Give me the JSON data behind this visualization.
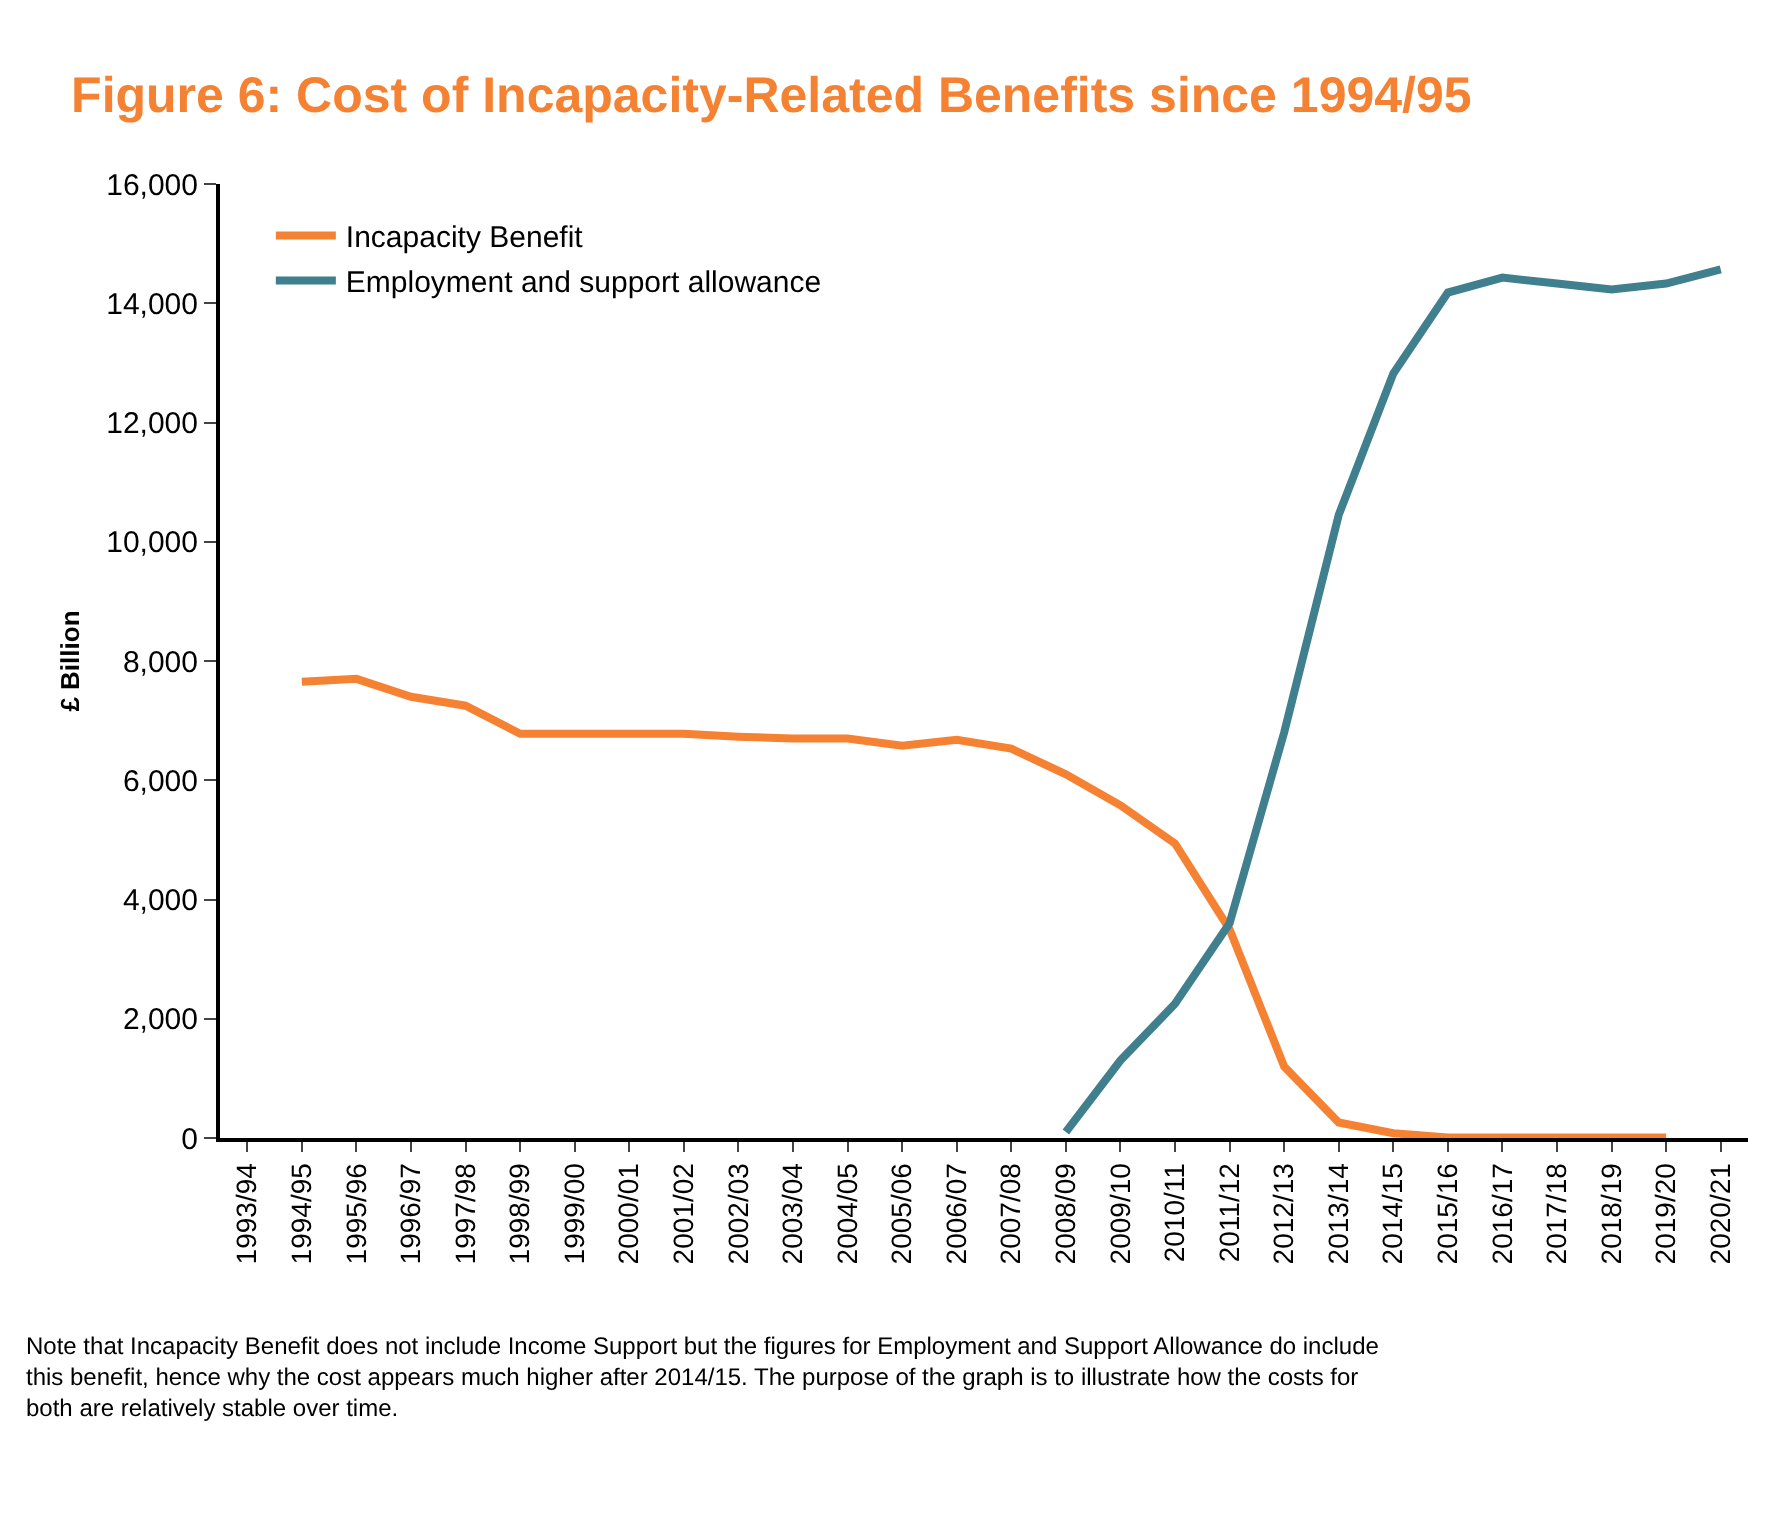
{
  "chart_data": {
    "type": "line",
    "title": "Figure 6: Cost of Incapacity-Related Benefits since 1994/95",
    "ylabel": "£ Billion",
    "categories": [
      "1993/94",
      "1994/95",
      "1995/96",
      "1996/97",
      "1997/98",
      "1998/99",
      "1999/00",
      "2000/01",
      "2001/02",
      "2002/03",
      "2003/04",
      "2004/05",
      "2005/06",
      "2006/07",
      "2007/08",
      "2008/09",
      "2009/10",
      "2010/11",
      "2011/12",
      "2012/13",
      "2013/14",
      "2014/15",
      "2015/16",
      "2016/17",
      "2017/18",
      "2018/19",
      "2019/20",
      "2020/21"
    ],
    "series": [
      {
        "name": "Incapacity Benefit",
        "color": "#f58233",
        "values": [
          null,
          7650,
          7700,
          7400,
          7250,
          6780,
          6780,
          6780,
          6780,
          6730,
          6700,
          6700,
          6580,
          6680,
          6530,
          6100,
          5580,
          4940,
          3500,
          1200,
          260,
          80,
          10,
          10,
          10,
          10,
          10,
          null
        ]
      },
      {
        "name": "Employment and support allowance",
        "color": "#3f7f8e",
        "values": [
          null,
          null,
          null,
          null,
          null,
          null,
          null,
          null,
          null,
          null,
          null,
          null,
          null,
          null,
          null,
          100,
          1300,
          2250,
          3600,
          6800,
          10450,
          12820,
          14180,
          14430,
          14330,
          14230,
          14330,
          14570
        ]
      }
    ],
    "ylim": [
      0,
      16000
    ],
    "yticks": [
      {
        "value": 0,
        "label": "0"
      },
      {
        "value": 2000,
        "label": "2,000"
      },
      {
        "value": 4000,
        "label": "4,000"
      },
      {
        "value": 6000,
        "label": "6,000"
      },
      {
        "value": 8000,
        "label": "8,000"
      },
      {
        "value": 10000,
        "label": "10,000"
      },
      {
        "value": 12000,
        "label": "12,000"
      },
      {
        "value": 14000,
        "label": "14,000"
      },
      {
        "value": 16000,
        "label": "16,000"
      }
    ],
    "legend": "top left",
    "marker": "none",
    "line_style": "solid",
    "annotations": [
      "Note that Incapacity Benefit does not include Income Support but the figures for Employment and Support Allowance do include this benefit, hence why the cost appears much higher after 2014/15. The purpose of the graph is to illustrate how the costs for both are relatively stable over time."
    ]
  }
}
